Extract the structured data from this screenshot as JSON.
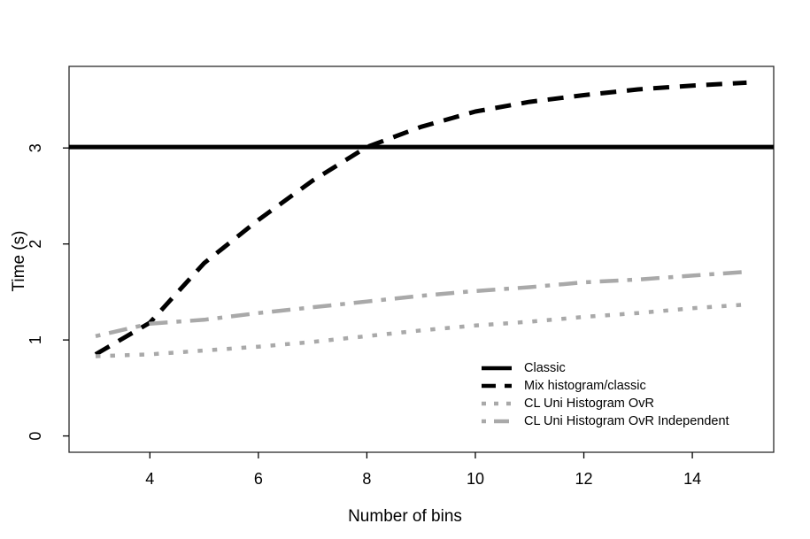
{
  "chart_data": {
    "type": "line",
    "title": "",
    "xlabel": "Number of bins",
    "ylabel": "Time (s)",
    "xlim": [
      2.51,
      15.5
    ],
    "ylim": [
      -0.17,
      3.85
    ],
    "xticks": [
      4,
      6,
      8,
      10,
      12,
      14
    ],
    "yticks": [
      0,
      1,
      2,
      3
    ],
    "grid": false,
    "legend_position": "inside-bottom-right",
    "colors": {
      "black": "#000000",
      "gray": "#a9a9a9",
      "box": "#2b2b2b"
    },
    "x": [
      3,
      4,
      5,
      6,
      7,
      8,
      9,
      10,
      11,
      12,
      13,
      14,
      15
    ],
    "series": [
      {
        "name": "Classic",
        "kind": "hline",
        "value": 3.01,
        "color": "#000000",
        "style": "solid",
        "width": 5
      },
      {
        "name": "Mix histogram/classic",
        "kind": "line",
        "color": "#000000",
        "style": "dashed",
        "width": 5,
        "values": [
          0.85,
          1.18,
          1.8,
          2.25,
          2.66,
          3.01,
          3.22,
          3.38,
          3.48,
          3.55,
          3.61,
          3.65,
          3.68
        ]
      },
      {
        "name": "CL Uni Histogram OvR",
        "kind": "line",
        "color": "#a9a9a9",
        "style": "dotted",
        "width": 4.5,
        "values": [
          0.83,
          0.85,
          0.89,
          0.93,
          0.98,
          1.04,
          1.1,
          1.15,
          1.19,
          1.24,
          1.28,
          1.33,
          1.37
        ]
      },
      {
        "name": "CL Uni Histogram OvR Independent",
        "kind": "line",
        "color": "#a9a9a9",
        "style": "dotdash",
        "width": 4.5,
        "values": [
          1.04,
          1.17,
          1.21,
          1.28,
          1.34,
          1.4,
          1.46,
          1.51,
          1.55,
          1.6,
          1.63,
          1.67,
          1.71
        ]
      }
    ]
  }
}
